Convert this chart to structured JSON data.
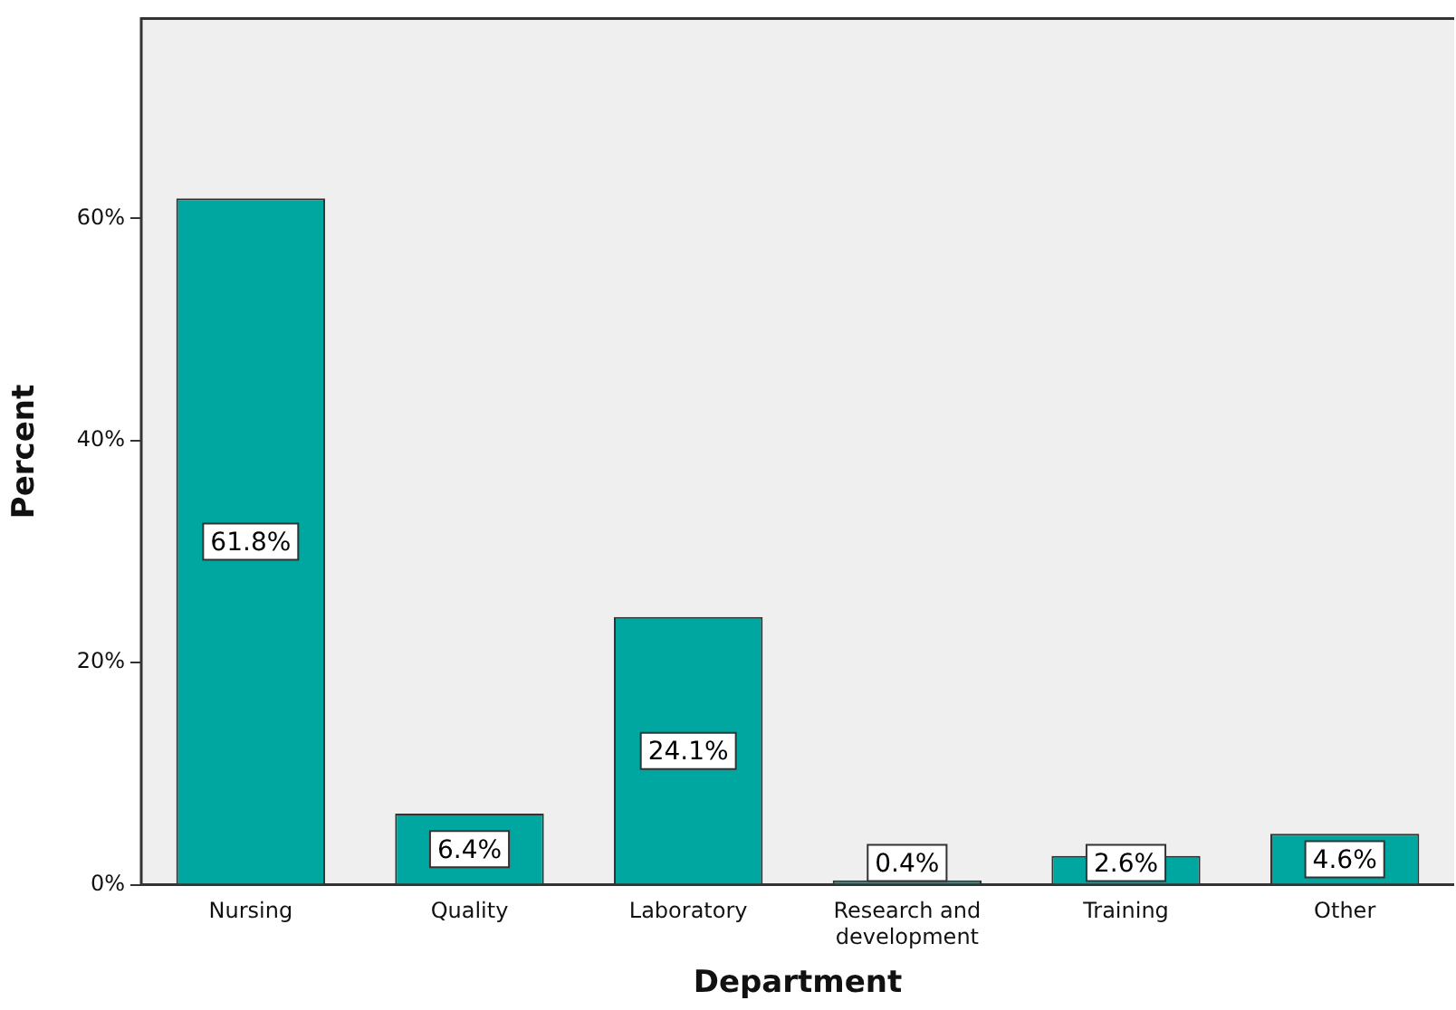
{
  "chart_data": {
    "type": "bar",
    "xlabel": "Department",
    "ylabel": "Percent",
    "categories": [
      "Nursing",
      "Quality",
      "Laboratory",
      "Research and\ndevelopment",
      "Training",
      "Other"
    ],
    "values": [
      61.8,
      6.4,
      24.1,
      0.4,
      2.6,
      4.6
    ],
    "value_labels": [
      "61.8%",
      "6.4%",
      "24.1%",
      "0.4%",
      "2.6%",
      "4.6%"
    ],
    "color": "#00a6a0",
    "ylim": [
      0,
      78
    ],
    "yticks": [
      {
        "value": 0,
        "label": "0%"
      },
      {
        "value": 20,
        "label": "20%"
      },
      {
        "value": 40,
        "label": "40%"
      },
      {
        "value": 60,
        "label": "60%"
      }
    ],
    "grid": false,
    "legend": false
  }
}
